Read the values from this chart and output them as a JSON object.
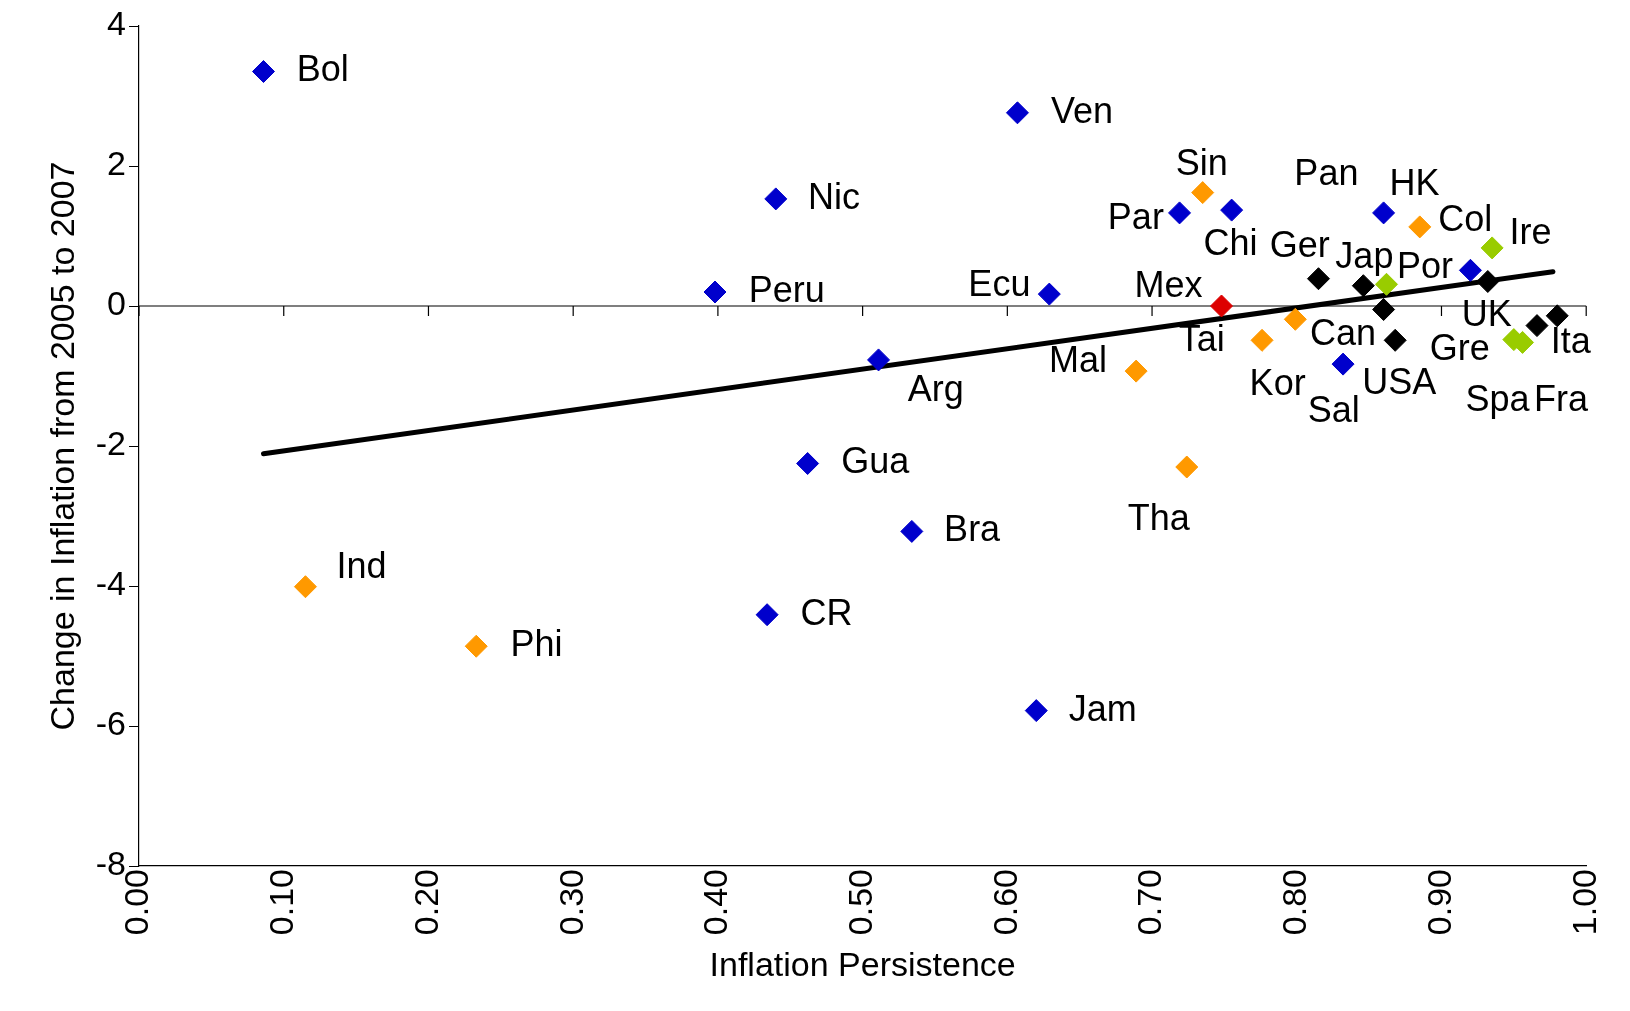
{
  "chart_data": {
    "type": "scatter",
    "xlabel": "Inflation Persistence",
    "ylabel": "Change in Inflation from 2005 to 2007",
    "xlim": [
      0,
      1
    ],
    "xticks": [
      {
        "value": 0,
        "label": "0.00"
      },
      {
        "value": 0.1,
        "label": "0.10"
      },
      {
        "value": 0.2,
        "label": "0.20"
      },
      {
        "value": 0.3,
        "label": "0.30"
      },
      {
        "value": 0.4,
        "label": "0.40"
      },
      {
        "value": 0.5,
        "label": "0.50"
      },
      {
        "value": 0.6,
        "label": "0.60"
      },
      {
        "value": 0.7,
        "label": "0.70"
      },
      {
        "value": 0.8,
        "label": "0.80"
      },
      {
        "value": 0.9,
        "label": "0.90"
      },
      {
        "value": 1,
        "label": "1.00"
      }
    ],
    "ylim": [
      -8,
      4
    ],
    "yticks": [
      -8,
      -6,
      -4,
      -2,
      0,
      2,
      4
    ],
    "grid": false,
    "legend": false,
    "marker": "diamond",
    "ref_lines": [
      {
        "axis": "y",
        "value": 0,
        "color": "#000000"
      }
    ],
    "series": [
      {
        "color": "#0000cc",
        "x": [
          0.086,
          0.607,
          0.44,
          0.398,
          0.629,
          0.511,
          0.462,
          0.534,
          0.434,
          0.62,
          0.719,
          0.755,
          0.86,
          0.92,
          0.832
        ],
        "values": [
          3.35,
          2.76,
          1.53,
          0.2,
          0.17,
          -0.77,
          -2.25,
          -3.22,
          -4.41,
          -5.78,
          1.33,
          1.37,
          1.33,
          0.51,
          -0.83
        ]
      },
      {
        "color": "#ff9900",
        "x": [
          0.115,
          0.233,
          0.724,
          0.689,
          0.735,
          0.776,
          0.799,
          0.885
        ],
        "values": [
          -4.01,
          -4.86,
          -2.3,
          -0.93,
          1.62,
          -0.49,
          -0.19,
          1.13
        ]
      },
      {
        "color": "#dd0000",
        "x": [
          0.748
        ],
        "values": [
          0.0
        ]
      },
      {
        "color": "#99cc00",
        "x": [
          0.935,
          0.862,
          0.95,
          0.956
        ],
        "values": [
          0.83,
          0.31,
          -0.48,
          -0.52
        ]
      },
      {
        "color": "#000000",
        "x": [
          0.815,
          0.846,
          0.86,
          0.868,
          0.932,
          0.966,
          0.98
        ],
        "values": [
          0.39,
          0.29,
          -0.05,
          -0.49,
          0.35,
          -0.28,
          -0.14
        ]
      },
      {
        "type": "line",
        "color": "#000000",
        "marker": "none",
        "x": [
          0.086,
          0.977
        ],
        "values": [
          -2.11,
          0.49
        ]
      }
    ],
    "annotations": [
      {
        "text": "Bol",
        "x": 0.086,
        "y": 3.35
      },
      {
        "text": "Ven",
        "x": 0.607,
        "y": 2.76
      },
      {
        "text": "Nic",
        "x": 0.44,
        "y": 1.53
      },
      {
        "text": "Peru",
        "x": 0.398,
        "y": 0.2
      },
      {
        "text": "Ecu",
        "x": 0.629,
        "y": 0.17
      },
      {
        "text": "Arg",
        "x": 0.511,
        "y": -0.77
      },
      {
        "text": "Gua",
        "x": 0.462,
        "y": -2.25
      },
      {
        "text": "Bra",
        "x": 0.534,
        "y": -3.22
      },
      {
        "text": "CR",
        "x": 0.434,
        "y": -4.41
      },
      {
        "text": "Jam",
        "x": 0.62,
        "y": -5.78
      },
      {
        "text": "Par",
        "x": 0.719,
        "y": 1.33
      },
      {
        "text": "Chi",
        "x": 0.755,
        "y": 1.37
      },
      {
        "text": "Pan",
        "x": 0.86,
        "y": 1.33
      },
      {
        "text": "Col",
        "x": 0.92,
        "y": 0.51
      },
      {
        "text": "Sal",
        "x": 0.832,
        "y": -0.83
      },
      {
        "text": "Ind",
        "x": 0.115,
        "y": -4.01
      },
      {
        "text": "Phi",
        "x": 0.233,
        "y": -4.86
      },
      {
        "text": "Tha",
        "x": 0.724,
        "y": -2.3
      },
      {
        "text": "Mal",
        "x": 0.689,
        "y": -0.93
      },
      {
        "text": "Sin",
        "x": 0.735,
        "y": 1.62
      },
      {
        "text": "Tai",
        "x": 0.776,
        "y": -0.49
      },
      {
        "text": "Kor",
        "x": 0.799,
        "y": -0.19
      },
      {
        "text": "HK",
        "x": 0.885,
        "y": 1.13
      },
      {
        "text": "Mex",
        "x": 0.748,
        "y": 0.0
      },
      {
        "text": "Ire",
        "x": 0.935,
        "y": 0.83
      },
      {
        "text": "Por",
        "x": 0.862,
        "y": 0.31
      },
      {
        "text": "Gre",
        "x": 0.95,
        "y": -0.48
      },
      {
        "text": "Spa",
        "x": 0.956,
        "y": -0.52
      },
      {
        "text": "Ger",
        "x": 0.815,
        "y": 0.39
      },
      {
        "text": "Jap",
        "x": 0.846,
        "y": 0.29
      },
      {
        "text": "Can",
        "x": 0.86,
        "y": -0.05
      },
      {
        "text": "USA",
        "x": 0.868,
        "y": -0.49
      },
      {
        "text": "UK",
        "x": 0.932,
        "y": 0.35
      },
      {
        "text": "Fra",
        "x": 0.966,
        "y": -0.28
      },
      {
        "text": "Ita",
        "x": 0.98,
        "y": -0.14
      }
    ]
  }
}
